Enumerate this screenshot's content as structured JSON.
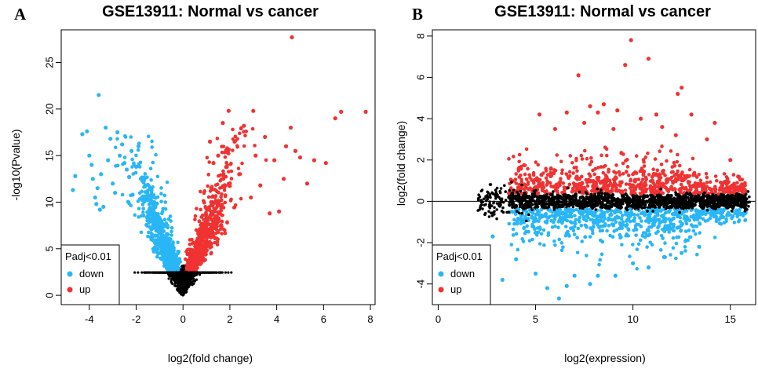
{
  "chart_data": [
    {
      "panel_label": "A",
      "type": "scatter",
      "title": "GSE13911: Normal vs cancer",
      "xlabel": "log2(fold change)",
      "ylabel": "-log10(Pvalue)",
      "xlim": [
        -5.2,
        8.2
      ],
      "ylim": [
        -1.0,
        28.5
      ],
      "xticks": [
        -4,
        -2,
        0,
        2,
        4,
        6,
        8
      ],
      "yticks": [
        0,
        5,
        10,
        15,
        20,
        25
      ],
      "grid": false,
      "legend": {
        "title": "Padj<0.01",
        "position": "bottom-left",
        "entries": [
          {
            "label": "down",
            "color": "#29b6f6"
          },
          {
            "label": "up",
            "color": "#f03232"
          }
        ]
      },
      "series": [
        {
          "role": "down",
          "color": "#29b6f6",
          "points": [
            [
              -4.7,
              11.3
            ],
            [
              -4.6,
              12.8
            ],
            [
              -4.3,
              17.3
            ],
            [
              -4.1,
              17.6
            ],
            [
              -4.0,
              15.0
            ],
            [
              -3.9,
              14.0
            ],
            [
              -3.85,
              12.5
            ],
            [
              -3.75,
              10.5
            ],
            [
              -3.7,
              9.8
            ],
            [
              -3.65,
              11.5
            ],
            [
              -3.6,
              21.5
            ],
            [
              -3.55,
              9.2
            ],
            [
              -3.5,
              13.0
            ],
            [
              -3.4,
              9.5
            ],
            [
              -3.3,
              18.0
            ],
            [
              -3.2,
              14.5
            ],
            [
              -3.1,
              16.8
            ],
            [
              -3.0,
              12.0
            ],
            [
              -2.9,
              11.0
            ],
            [
              -2.8,
              17.5
            ],
            [
              -2.7,
              15.0
            ],
            [
              -2.6,
              16.2
            ],
            [
              -2.5,
              14.2
            ],
            [
              -2.4,
              13.5
            ],
            [
              -2.3,
              12.7
            ],
            [
              -2.2,
              15.5
            ],
            [
              -2.15,
              10.8
            ],
            [
              -2.0,
              13.8
            ],
            [
              -1.9,
              16.0
            ],
            [
              -1.8,
              12.5
            ]
          ]
        },
        {
          "role": "up",
          "color": "#f03232",
          "points": [
            [
              4.65,
              27.7
            ],
            [
              6.75,
              19.7
            ],
            [
              7.8,
              19.7
            ],
            [
              6.5,
              19.0
            ],
            [
              6.1,
              14.2
            ],
            [
              5.6,
              14.5
            ],
            [
              5.3,
              12.0
            ],
            [
              5.0,
              14.8
            ],
            [
              4.8,
              15.5
            ],
            [
              4.6,
              18.0
            ],
            [
              4.4,
              16.0
            ],
            [
              4.3,
              12.5
            ],
            [
              4.1,
              9.0
            ],
            [
              3.9,
              14.5
            ],
            [
              3.7,
              8.8
            ],
            [
              3.5,
              17.0
            ],
            [
              3.3,
              11.8
            ],
            [
              3.1,
              15.0
            ],
            [
              3.0,
              19.8
            ],
            [
              2.9,
              10.5
            ],
            [
              2.6,
              18.2
            ],
            [
              2.4,
              13.0
            ],
            [
              2.2,
              16.5
            ],
            [
              1.95,
              19.8
            ],
            [
              2.0,
              12.0
            ],
            [
              1.7,
              18.5
            ],
            [
              1.5,
              15.0
            ],
            [
              1.3,
              14.2
            ],
            [
              1.15,
              16.5
            ],
            [
              1.2,
              10.0
            ]
          ]
        },
        {
          "role": "not significant",
          "color": "#000000",
          "points": []
        }
      ]
    },
    {
      "panel_label": "B",
      "type": "scatter",
      "title": "GSE13911: Normal vs cancer",
      "xlabel": "log2(expression)",
      "ylabel": "log2(fold change)",
      "xlim": [
        -0.3,
        16.3
      ],
      "ylim": [
        -5.0,
        8.3
      ],
      "xticks": [
        0,
        5,
        10,
        15
      ],
      "yticks": [
        -4,
        -2,
        0,
        2,
        4,
        6,
        8
      ],
      "grid": false,
      "reference_line_y": 0,
      "legend": {
        "title": "Padj<0.01",
        "position": "bottom-left",
        "entries": [
          {
            "label": "down",
            "color": "#29b6f6"
          },
          {
            "label": "up",
            "color": "#f03232"
          }
        ]
      },
      "series": [
        {
          "role": "down",
          "color": "#29b6f6",
          "points": [
            [
              2.8,
              -1.7
            ],
            [
              3.3,
              -3.8
            ],
            [
              4.0,
              -2.8
            ],
            [
              5.0,
              -3.5
            ],
            [
              5.6,
              -4.2
            ],
            [
              6.2,
              -4.7
            ],
            [
              6.6,
              -4.1
            ],
            [
              7.0,
              -3.6
            ],
            [
              7.8,
              -4.0
            ],
            [
              8.2,
              -3.6
            ],
            [
              9.1,
              -3.6
            ],
            [
              10.0,
              -3.0
            ],
            [
              10.8,
              -3.2
            ],
            [
              11.6,
              -2.7
            ],
            [
              12.5,
              -2.5
            ],
            [
              13.4,
              -2.2
            ]
          ]
        },
        {
          "role": "up",
          "color": "#f03232",
          "points": [
            [
              9.9,
              7.8
            ],
            [
              10.8,
              6.9
            ],
            [
              9.6,
              6.6
            ],
            [
              7.2,
              6.1
            ],
            [
              12.5,
              5.5
            ],
            [
              12.3,
              5.2
            ],
            [
              8.5,
              4.7
            ],
            [
              7.8,
              4.6
            ],
            [
              8.2,
              4.3
            ],
            [
              9.2,
              4.4
            ],
            [
              6.6,
              4.3
            ],
            [
              5.2,
              4.2
            ],
            [
              10.4,
              4.0
            ],
            [
              11.2,
              4.2
            ],
            [
              13.0,
              4.2
            ],
            [
              11.5,
              3.6
            ],
            [
              14.2,
              3.8
            ],
            [
              6.0,
              3.5
            ],
            [
              7.5,
              3.8
            ],
            [
              9.0,
              3.5
            ],
            [
              12.2,
              3.2
            ],
            [
              13.8,
              3.0
            ],
            [
              15.0,
              2.0
            ],
            [
              15.4,
              1.2
            ],
            [
              15.6,
              0.7
            ]
          ]
        },
        {
          "role": "not significant",
          "color": "#000000",
          "points": []
        }
      ]
    }
  ]
}
